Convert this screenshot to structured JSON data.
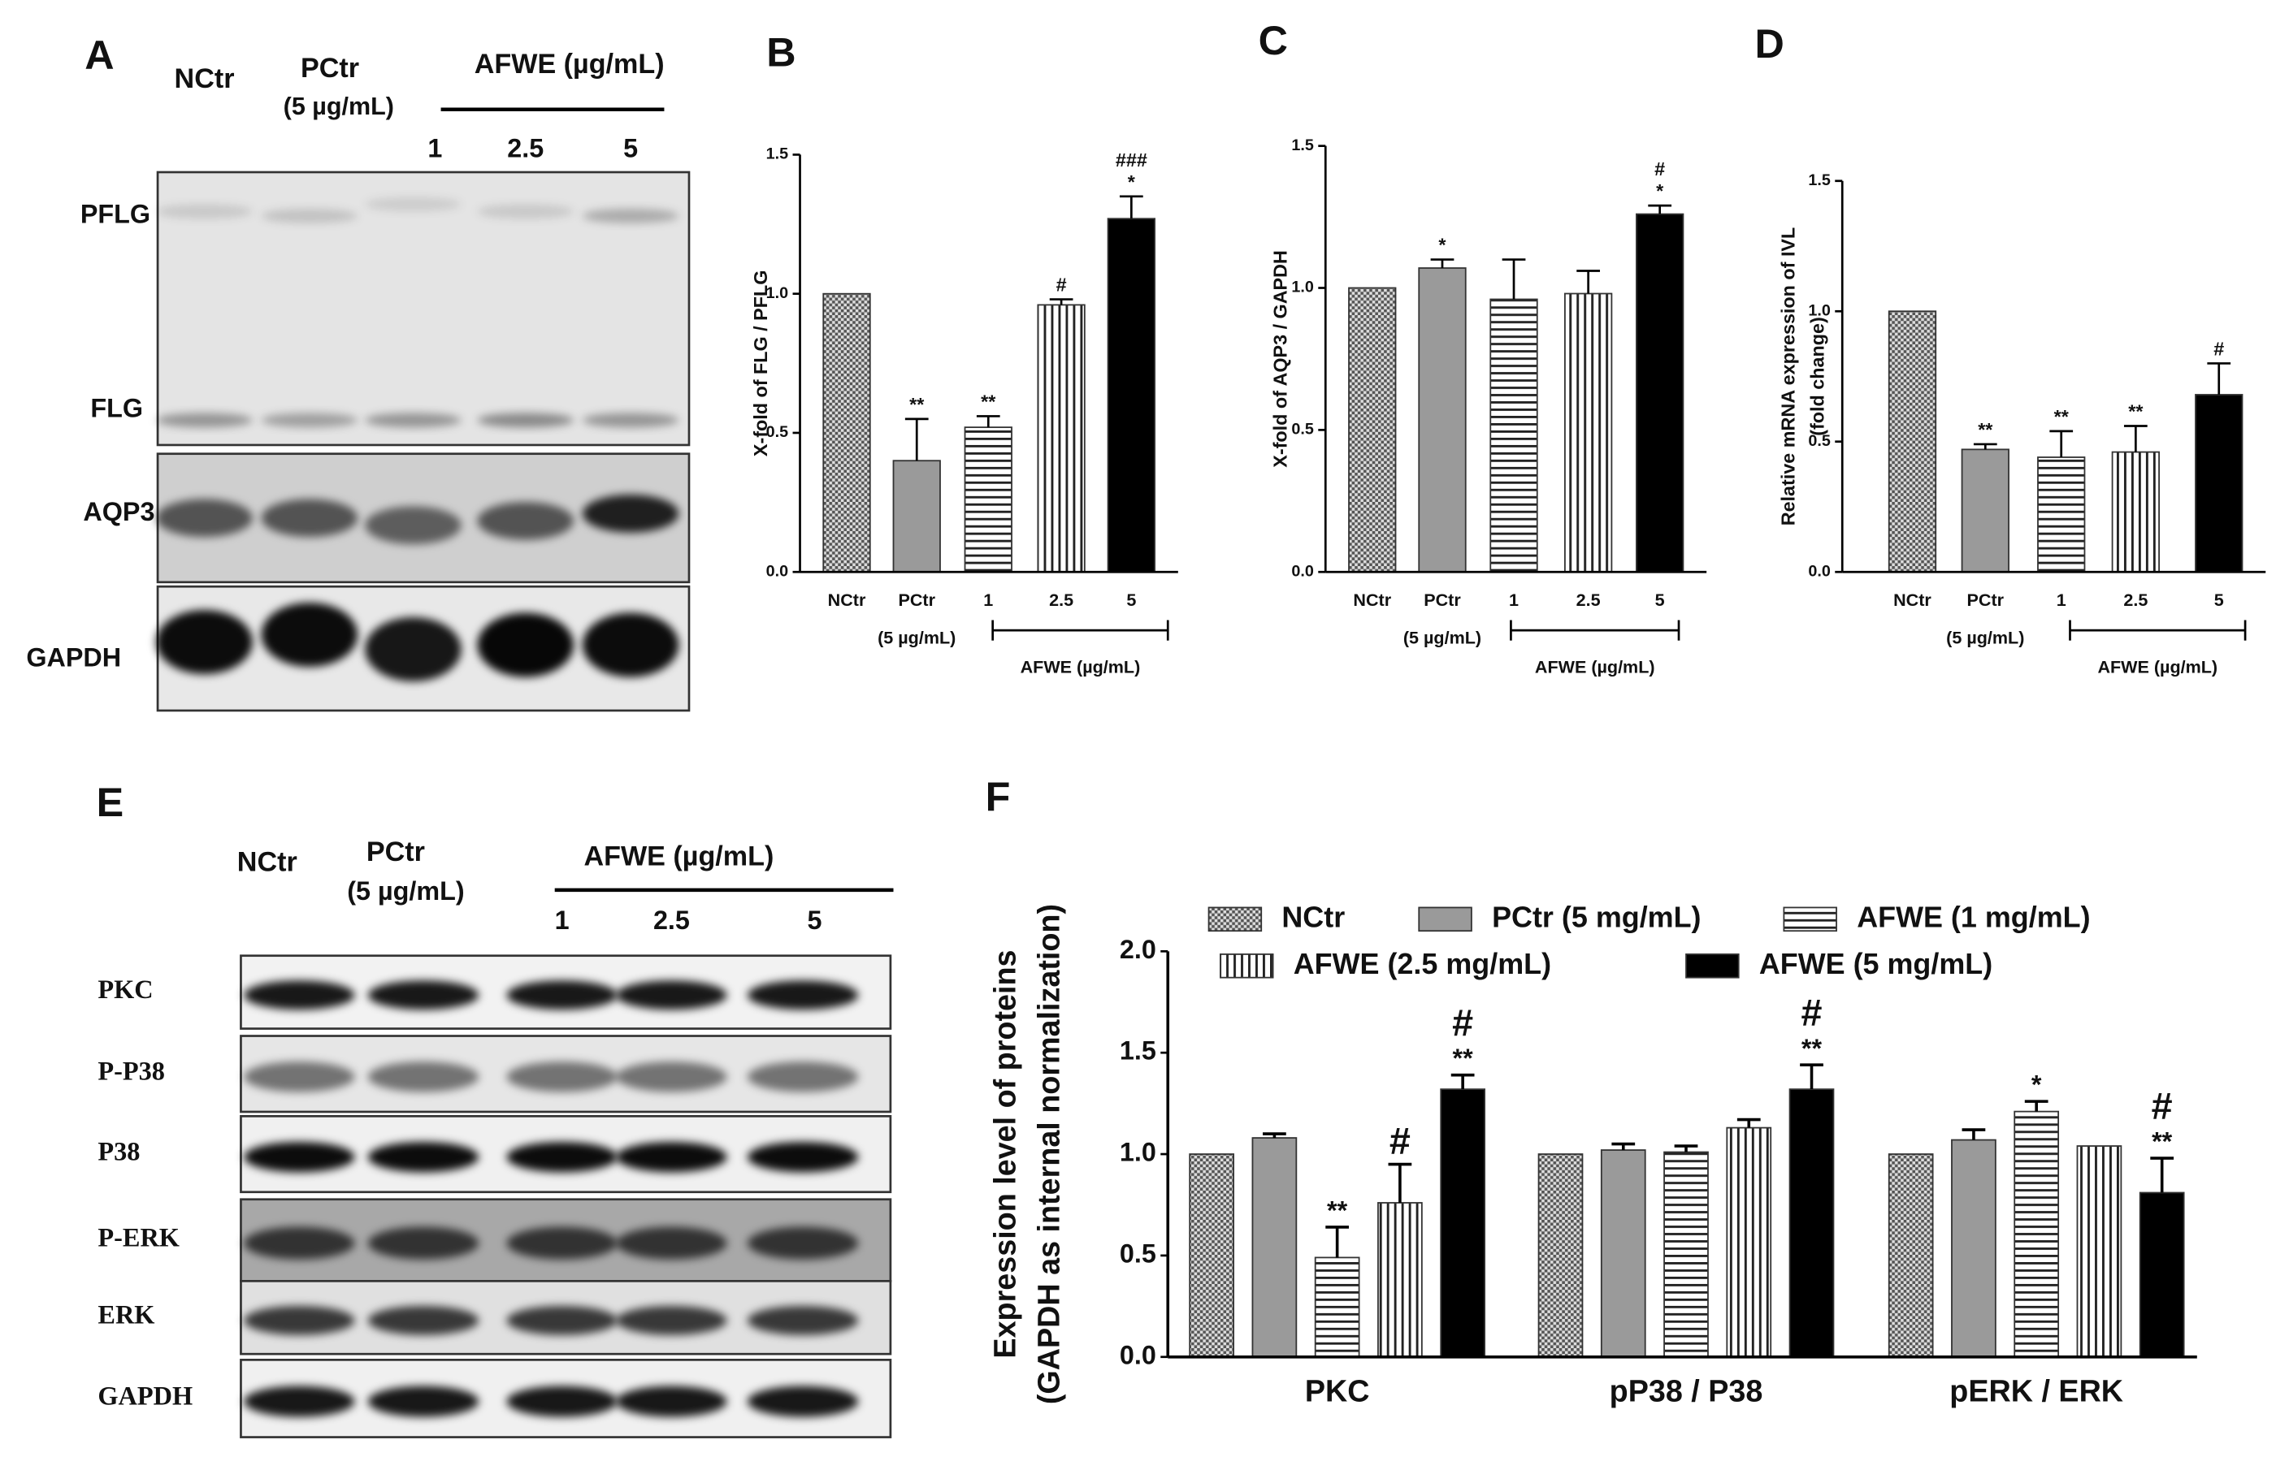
{
  "chart_data": [
    {
      "type": "bar",
      "panel": "B",
      "ylabel": [
        "X-fold of FLG / PFLG"
      ],
      "categories": [
        "NCtr",
        "PCtr",
        "1",
        "2.5",
        "5"
      ],
      "category_notes": [
        null,
        "(5 µg/mL)",
        null,
        null,
        null
      ],
      "group_label": "AFWE (µg/mL)",
      "values": [
        1.0,
        0.4,
        0.52,
        0.96,
        1.27
      ],
      "errors": [
        null,
        0.15,
        0.04,
        0.02,
        0.08
      ],
      "annotations": [
        [],
        [
          "**"
        ],
        [
          "**"
        ],
        [
          "#"
        ],
        [
          "*",
          "###"
        ]
      ],
      "patterns": [
        "checker",
        "gray",
        "hlines",
        "vlines",
        "black"
      ],
      "ylim": [
        0,
        1.5
      ],
      "yticks": [
        {
          "value": 0,
          "label": "0.0"
        },
        {
          "value": 0.5,
          "label": "0.5"
        },
        {
          "value": 1,
          "label": "1.0"
        },
        {
          "value": 1.5,
          "label": "1.5"
        }
      ]
    },
    {
      "type": "bar",
      "panel": "C",
      "ylabel": [
        "X-fold of AQP3 / GAPDH"
      ],
      "categories": [
        "NCtr",
        "PCtr",
        "1",
        "2.5",
        "5"
      ],
      "category_notes": [
        null,
        "(5 µg/mL)",
        null,
        null,
        null
      ],
      "group_label": "AFWE (µg/mL)",
      "values": [
        1.0,
        1.07,
        0.96,
        0.98,
        1.26
      ],
      "errors": [
        null,
        0.03,
        0.14,
        0.08,
        0.03
      ],
      "annotations": [
        [],
        [
          "*"
        ],
        [],
        [],
        [
          "*",
          "#"
        ]
      ],
      "patterns": [
        "checker",
        "gray",
        "hlines",
        "vlines",
        "black"
      ],
      "ylim": [
        0,
        1.5
      ],
      "yticks": [
        {
          "value": 0,
          "label": "0.0"
        },
        {
          "value": 0.5,
          "label": "0.5"
        },
        {
          "value": 1,
          "label": "1.0"
        },
        {
          "value": 1.5,
          "label": "1.5"
        }
      ]
    },
    {
      "type": "bar",
      "panel": "D",
      "ylabel": [
        "Relative mRNA expression of IVL",
        "(fold change)"
      ],
      "categories": [
        "NCtr",
        "PCtr",
        "1",
        "2.5",
        "5"
      ],
      "category_notes": [
        null,
        "(5 µg/mL)",
        null,
        null,
        null
      ],
      "group_label": "AFWE (µg/mL)",
      "values": [
        1.0,
        0.47,
        0.44,
        0.46,
        0.68
      ],
      "errors": [
        null,
        0.02,
        0.1,
        0.1,
        0.12
      ],
      "annotations": [
        [],
        [
          "**"
        ],
        [
          "**"
        ],
        [
          "**"
        ],
        [
          "#"
        ]
      ],
      "patterns": [
        "checker",
        "gray",
        "hlines",
        "vlines",
        "black"
      ],
      "ylim": [
        0,
        1.5
      ],
      "yticks": [
        {
          "value": 0,
          "label": "0.0"
        },
        {
          "value": 0.5,
          "label": "0.5"
        },
        {
          "value": 1,
          "label": "1.0"
        },
        {
          "value": 1.5,
          "label": "1.5"
        }
      ]
    },
    {
      "type": "grouped_bar",
      "panel": "F",
      "ylabel": [
        "Expression level of proteins",
        "(GAPDH as internal normalization)"
      ],
      "categories": [
        "PKC",
        "pP38 / P38",
        "pERK / ERK"
      ],
      "series": [
        {
          "name": "NCtr",
          "pattern": "checker",
          "values": [
            1.0,
            1.0,
            1.0
          ],
          "errors": [
            null,
            null,
            null
          ],
          "annotations": [
            [],
            [],
            []
          ]
        },
        {
          "name": "PCtr (5 mg/mL)",
          "pattern": "gray",
          "values": [
            1.08,
            1.02,
            1.07
          ],
          "errors": [
            0.02,
            0.03,
            0.05
          ],
          "annotations": [
            [],
            [],
            []
          ]
        },
        {
          "name": "AFWE (1 mg/mL)",
          "pattern": "hlines",
          "values": [
            0.49,
            1.01,
            1.21
          ],
          "errors": [
            0.15,
            0.03,
            0.05
          ],
          "annotations": [
            [
              "**"
            ],
            [],
            [
              "*"
            ]
          ]
        },
        {
          "name": "AFWE (2.5 mg/mL)",
          "pattern": "vlines",
          "values": [
            0.76,
            1.13,
            1.04
          ],
          "errors": [
            0.19,
            0.04,
            null
          ],
          "annotations": [
            [
              "#"
            ],
            [],
            []
          ]
        },
        {
          "name": "AFWE (5 mg/mL)",
          "pattern": "black",
          "values": [
            1.32,
            1.32,
            0.81
          ],
          "errors": [
            0.07,
            0.12,
            0.17
          ],
          "annotations": [
            [
              "**",
              "#"
            ],
            [
              "**",
              "#"
            ],
            [
              "**",
              "#"
            ]
          ]
        }
      ],
      "ylim": [
        0,
        2
      ],
      "yticks": [
        {
          "value": 0,
          "label": "0.0"
        },
        {
          "value": 0.5,
          "label": "0.5"
        },
        {
          "value": 1,
          "label": "1.0"
        },
        {
          "value": 1.5,
          "label": "1.5"
        },
        {
          "value": 2,
          "label": "2.0"
        }
      ]
    }
  ],
  "blots": [
    {
      "panel": "A",
      "control": "NCtr",
      "positive": "PCtr",
      "positive_dose": "(5 µg/mL)",
      "treatment": "AFWE (µg/mL)",
      "doses": [
        "1",
        "2.5",
        "5"
      ],
      "rows": [
        "PFLG",
        "FLG",
        "AQP3",
        "GAPDH"
      ]
    },
    {
      "panel": "E",
      "control": "NCtr",
      "positive": "PCtr",
      "positive_dose": "(5 µg/mL)",
      "treatment": "AFWE (µg/mL)",
      "doses": [
        "1",
        "2.5",
        "5"
      ],
      "rows": [
        "PKC",
        "P-P38",
        "P38",
        "P-ERK",
        "ERK",
        "GAPDH"
      ]
    }
  ]
}
